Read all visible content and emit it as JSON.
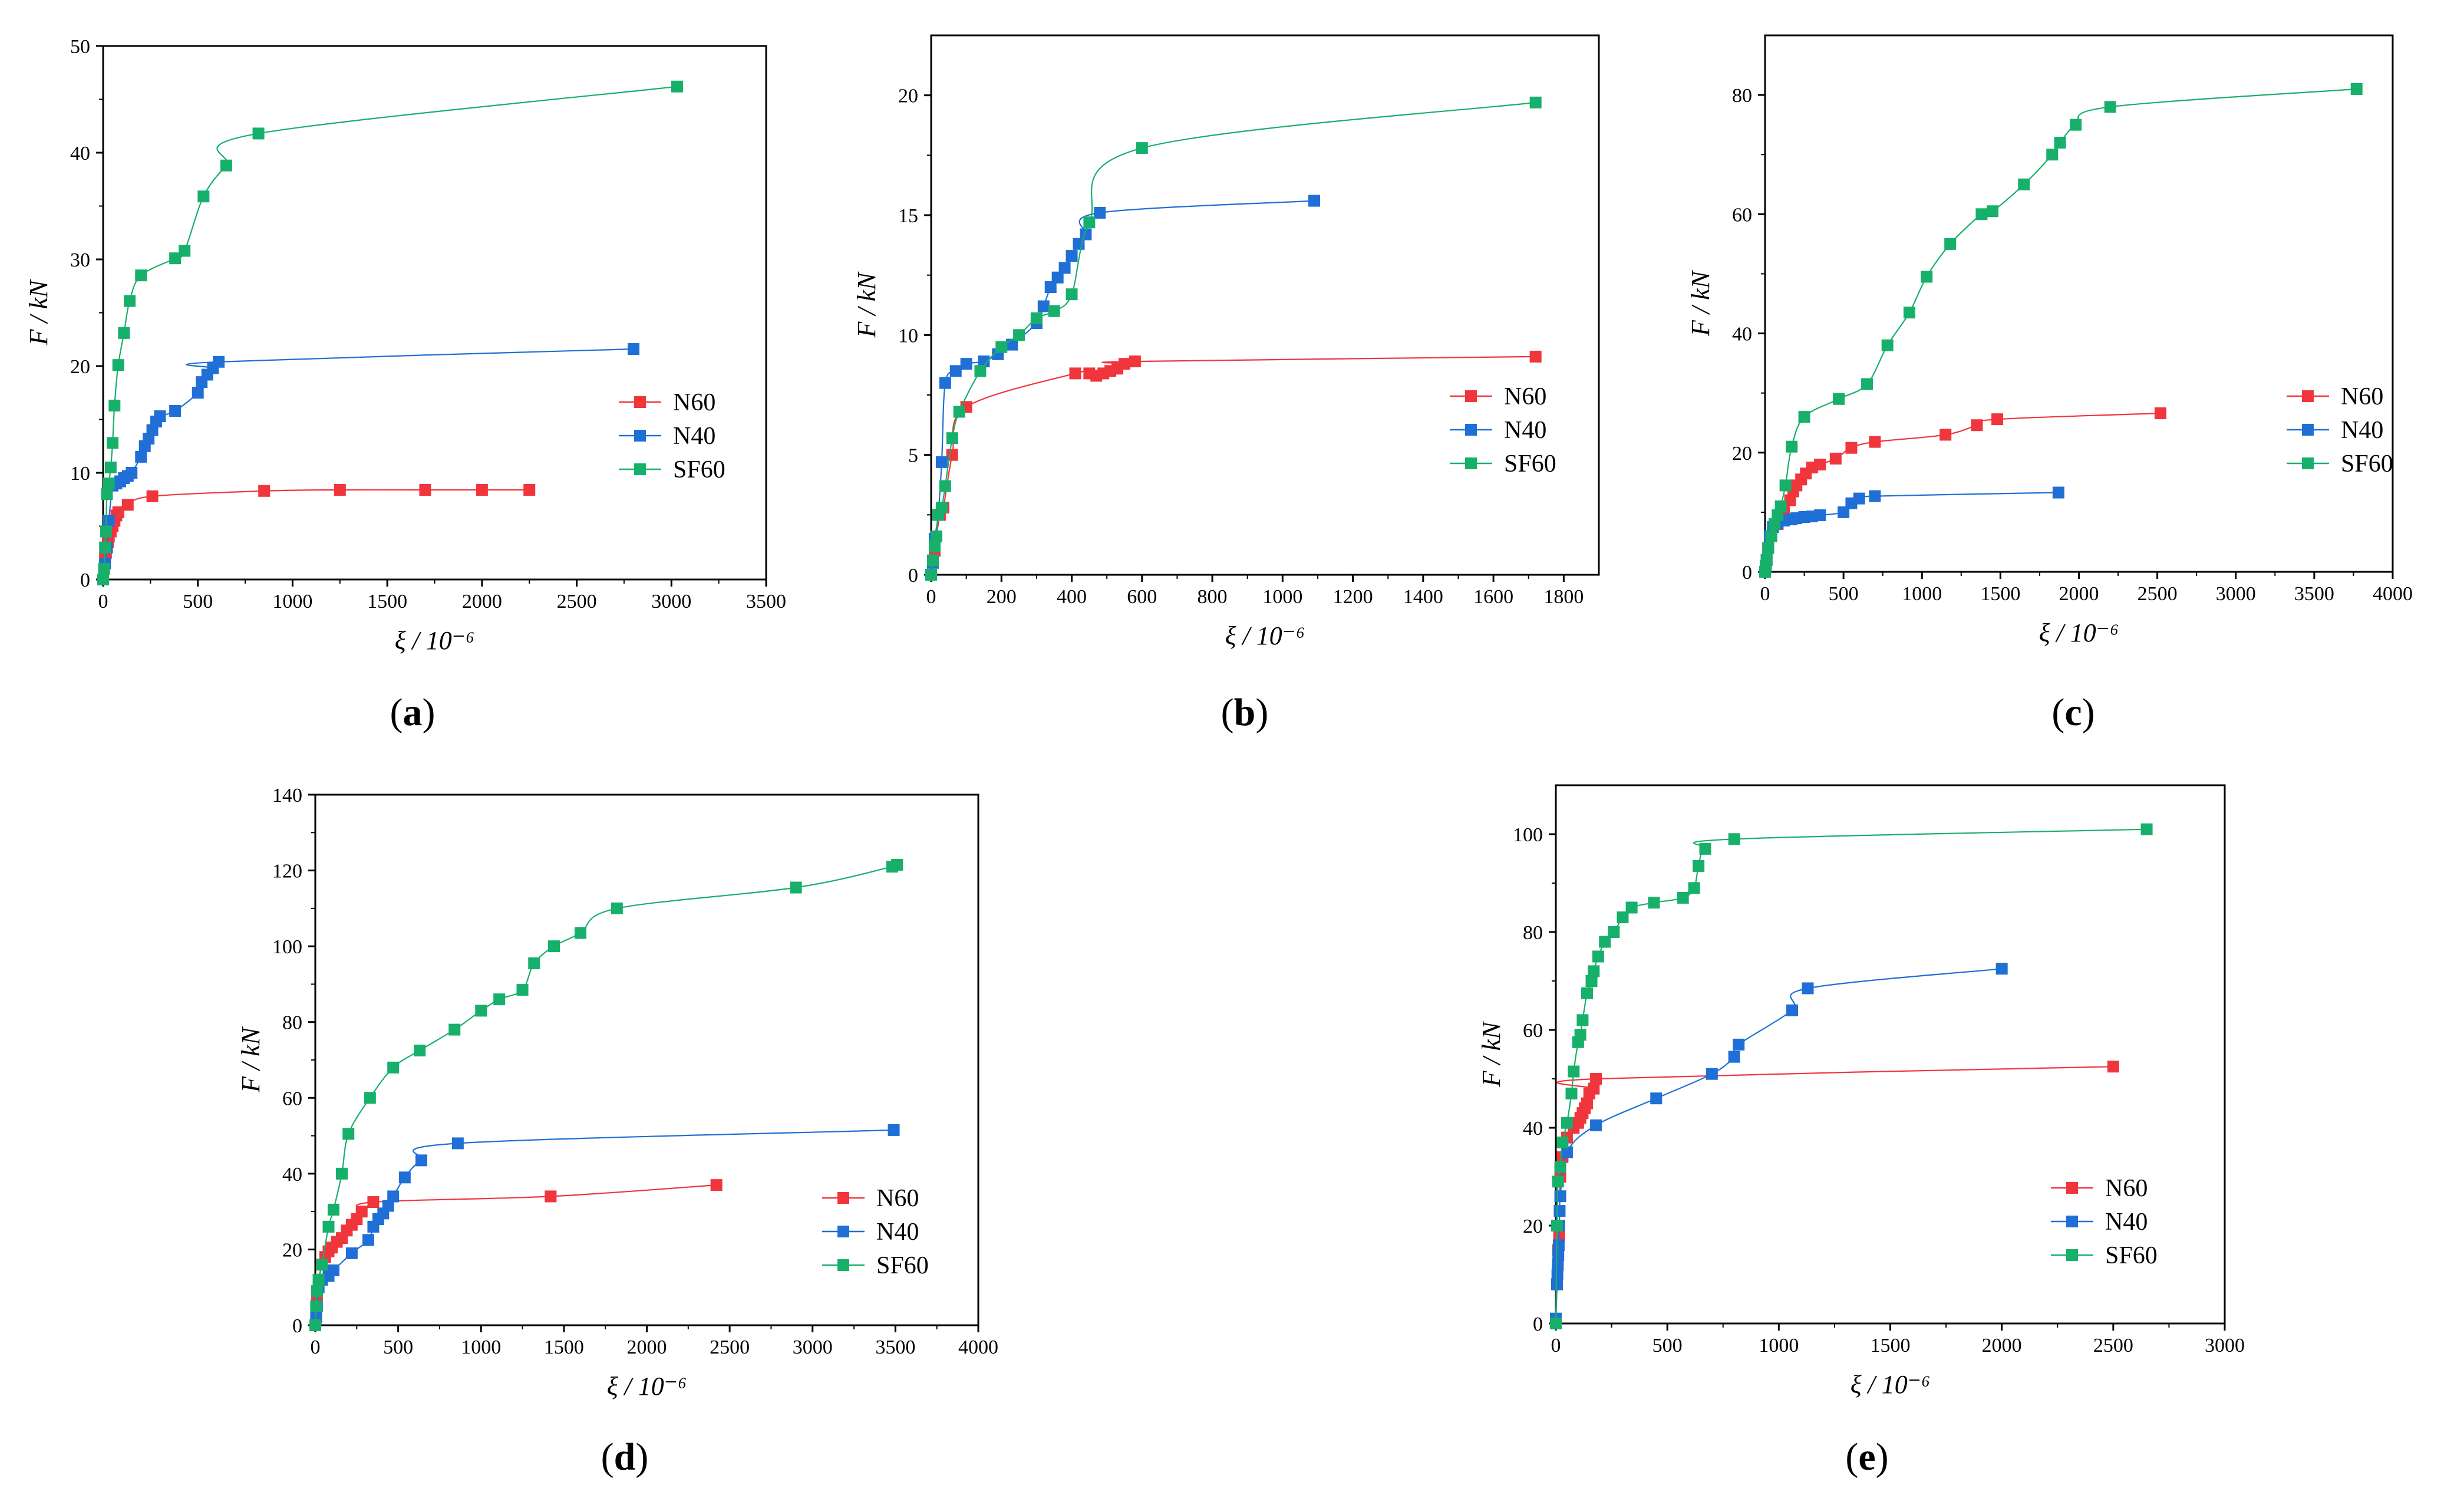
{
  "figure": {
    "series_colors": {
      "N60": "#f0353d",
      "N40": "#1f6fd6",
      "SF60": "#17b06b"
    }
  },
  "chart_data": [
    {
      "type": "line",
      "panel": "(a)",
      "panel_letter": "a",
      "xlabel": "ξ / 10⁻⁶",
      "ylabel": "F / kN",
      "xlim": [
        0,
        3500
      ],
      "ylim": [
        0,
        50
      ],
      "xticks": [
        0,
        500,
        1000,
        1500,
        2000,
        2500,
        3000,
        3500
      ],
      "yticks": [
        0,
        10,
        20,
        30,
        40,
        50
      ],
      "legend": "right",
      "series": [
        {
          "name": "N60",
          "color": "#f0353d",
          "x": [
            0,
            5,
            10,
            15,
            20,
            25,
            30,
            40,
            50,
            60,
            70,
            80,
            130,
            260,
            850,
            1250,
            1700,
            2000,
            2250
          ],
          "y": [
            0,
            1,
            2,
            2.5,
            3,
            3.5,
            4,
            4.5,
            5,
            5.5,
            6,
            6.3,
            7,
            7.8,
            8.3,
            8.4,
            8.4,
            8.4,
            8.4
          ]
        },
        {
          "name": "N40",
          "color": "#1f6fd6",
          "x": [
            0,
            10,
            20,
            30,
            50,
            70,
            90,
            110,
            130,
            150,
            200,
            220,
            240,
            260,
            280,
            300,
            380,
            500,
            520,
            550,
            580,
            610,
            2800
          ],
          "y": [
            0,
            1.5,
            3,
            5.5,
            8.8,
            9,
            9.2,
            9.5,
            9.7,
            10,
            11.5,
            12.5,
            13.2,
            14,
            14.8,
            15.3,
            15.8,
            17.5,
            18.5,
            19.2,
            19.8,
            20.4,
            21.6
          ]
        },
        {
          "name": "SF60",
          "color": "#17b06b",
          "x": [
            0,
            5,
            10,
            15,
            20,
            30,
            40,
            50,
            60,
            80,
            110,
            140,
            200,
            380,
            430,
            530,
            650,
            820,
            3030
          ],
          "y": [
            0,
            1,
            3,
            4.5,
            8,
            9,
            10.5,
            12.8,
            16.3,
            20.1,
            23.1,
            26.1,
            28.5,
            30.1,
            30.8,
            35.9,
            38.8,
            41.8,
            46.2
          ]
        }
      ]
    },
    {
      "type": "line",
      "panel": "(b)",
      "panel_letter": "b",
      "xlabel": "ξ / 10⁻⁶",
      "ylabel": "F / kN",
      "xlim": [
        0,
        1900
      ],
      "ylim": [
        0,
        22.5
      ],
      "xticks": [
        0,
        200,
        400,
        600,
        800,
        1000,
        1200,
        1400,
        1600,
        1800
      ],
      "yticks": [
        0,
        5,
        10,
        15,
        20
      ],
      "legend": "right",
      "series": [
        {
          "name": "N60",
          "color": "#f0353d",
          "x": [
            0,
            5,
            10,
            15,
            25,
            35,
            60,
            100,
            410,
            450,
            470,
            490,
            510,
            530,
            550,
            580,
            1720
          ],
          "y": [
            0,
            0.5,
            1,
            1.6,
            2.5,
            2.8,
            5,
            7,
            8.4,
            8.4,
            8.3,
            8.4,
            8.5,
            8.6,
            8.8,
            8.9,
            9.1
          ]
        },
        {
          "name": "N40",
          "color": "#1f6fd6",
          "x": [
            0,
            5,
            10,
            20,
            30,
            40,
            70,
            100,
            150,
            190,
            230,
            300,
            320,
            340,
            360,
            380,
            400,
            420,
            440,
            480,
            1090
          ],
          "y": [
            0,
            0.5,
            1.5,
            2.5,
            4.7,
            8,
            8.5,
            8.8,
            8.9,
            9.2,
            9.6,
            10.5,
            11.2,
            12,
            12.4,
            12.8,
            13.3,
            13.8,
            14.2,
            15.1,
            15.6
          ]
        },
        {
          "name": "SF60",
          "color": "#17b06b",
          "x": [
            0,
            5,
            10,
            15,
            20,
            30,
            40,
            60,
            80,
            140,
            200,
            250,
            300,
            350,
            400,
            450,
            600,
            1720
          ],
          "y": [
            0,
            0.6,
            1.2,
            1.6,
            2.5,
            2.8,
            3.7,
            5.7,
            6.8,
            8.5,
            9.5,
            10,
            10.7,
            11,
            11.7,
            14.7,
            17.8,
            19.7
          ]
        }
      ]
    },
    {
      "type": "line",
      "panel": "(c)",
      "panel_letter": "c",
      "xlabel": "ξ / 10⁻⁶",
      "ylabel": "F / kN",
      "xlim": [
        0,
        4000
      ],
      "ylim": [
        0,
        90
      ],
      "xticks": [
        0,
        500,
        1000,
        1500,
        2000,
        2500,
        3000,
        3500,
        4000
      ],
      "yticks": [
        0,
        20,
        40,
        60,
        80
      ],
      "legend": "right",
      "series": [
        {
          "name": "N60",
          "color": "#f0353d",
          "x": [
            0,
            10,
            20,
            40,
            80,
            120,
            160,
            180,
            200,
            230,
            260,
            300,
            350,
            450,
            550,
            700,
            1150,
            1350,
            1480,
            2520
          ],
          "y": [
            0,
            2,
            4,
            6,
            8,
            10,
            12,
            13.5,
            14.5,
            15.5,
            16.5,
            17.5,
            18,
            19,
            20.8,
            21.8,
            23,
            24.6,
            25.6,
            26.6
          ]
        },
        {
          "name": "N40",
          "color": "#1f6fd6",
          "x": [
            0,
            5,
            10,
            20,
            30,
            50,
            80,
            120,
            170,
            200,
            250,
            300,
            350,
            500,
            550,
            600,
            700,
            1870
          ],
          "y": [
            0,
            1,
            2,
            4,
            6,
            7.5,
            8.2,
            8.6,
            8.8,
            9,
            9.2,
            9.3,
            9.5,
            10,
            11.5,
            12.3,
            12.7,
            13.3
          ]
        },
        {
          "name": "SF60",
          "color": "#17b06b",
          "x": [
            0,
            5,
            10,
            20,
            40,
            60,
            80,
            100,
            130,
            170,
            250,
            470,
            650,
            780,
            920,
            1030,
            1180,
            1380,
            1450,
            1650,
            1830,
            1880,
            1980,
            2200,
            3770
          ],
          "y": [
            0,
            1,
            2,
            4,
            6,
            8,
            9.5,
            11,
            14.5,
            21,
            26,
            29,
            31.5,
            38,
            43.5,
            49.5,
            55,
            60,
            60.5,
            65,
            70,
            72,
            75,
            78,
            81
          ]
        }
      ]
    },
    {
      "type": "line",
      "panel": "(d)",
      "panel_letter": "d",
      "xlabel": "ξ / 10⁻⁶",
      "ylabel": "F / kN",
      "xlim": [
        0,
        4000
      ],
      "ylim": [
        0,
        140
      ],
      "xticks": [
        0,
        500,
        1000,
        1500,
        2000,
        2500,
        3000,
        3500,
        4000
      ],
      "yticks": [
        0,
        20,
        40,
        60,
        80,
        100,
        120,
        140
      ],
      "legend": "right",
      "series": [
        {
          "name": "N60",
          "color": "#f0353d",
          "x": [
            0,
            10,
            20,
            40,
            60,
            80,
            100,
            130,
            160,
            190,
            220,
            250,
            280,
            350,
            1420,
            2420
          ],
          "y": [
            0,
            8,
            12,
            16,
            18,
            19.5,
            20.5,
            22,
            23,
            25,
            26.5,
            28,
            30,
            32.5,
            34,
            37
          ]
        },
        {
          "name": "N40",
          "color": "#1f6fd6",
          "x": [
            0,
            5,
            10,
            20,
            40,
            80,
            110,
            220,
            320,
            350,
            380,
            410,
            440,
            470,
            540,
            640,
            860,
            3490
          ],
          "y": [
            0,
            2,
            5,
            10,
            12,
            13,
            14.5,
            19,
            22.5,
            26,
            28,
            29.5,
            31.5,
            34,
            39,
            43.5,
            48,
            51.5
          ]
        },
        {
          "name": "SF60",
          "color": "#17b06b",
          "x": [
            0,
            5,
            10,
            20,
            40,
            80,
            110,
            160,
            200,
            330,
            470,
            630,
            840,
            1000,
            1110,
            1250,
            1320,
            1440,
            1600,
            1820,
            2900,
            3480,
            3510
          ],
          "y": [
            0,
            5,
            9,
            12,
            16,
            26,
            30.5,
            40,
            50.5,
            60,
            68,
            72.5,
            78,
            83,
            86,
            88.5,
            95.5,
            100,
            103.5,
            110,
            115.5,
            121,
            121.5
          ]
        }
      ]
    },
    {
      "type": "line",
      "panel": "(e)",
      "panel_letter": "e",
      "xlabel": "ξ / 10⁻⁶",
      "ylabel": "F / kN",
      "xlim": [
        0,
        3000
      ],
      "ylim": [
        0,
        110
      ],
      "xticks": [
        0,
        500,
        1000,
        1500,
        2000,
        2500,
        3000
      ],
      "yticks": [
        0,
        20,
        40,
        60,
        80,
        100
      ],
      "legend": "bottom-right",
      "series": [
        {
          "name": "N60",
          "color": "#f0353d",
          "x": [
            0,
            5,
            10,
            15,
            20,
            30,
            50,
            80,
            100,
            110,
            120,
            130,
            140,
            150,
            170,
            180,
            2500
          ],
          "y": [
            0,
            8,
            15,
            18,
            30,
            34,
            38,
            40,
            41,
            42,
            43,
            44,
            45,
            47,
            48,
            50,
            52.5
          ]
        },
        {
          "name": "N40",
          "color": "#1f6fd6",
          "x": [
            0,
            5,
            7,
            9,
            11,
            13,
            15,
            17,
            20,
            50,
            180,
            450,
            700,
            800,
            820,
            1060,
            1130,
            2000
          ],
          "y": [
            1,
            8,
            10,
            12,
            14,
            16,
            20,
            23,
            26,
            35,
            40.5,
            46,
            51,
            54.5,
            57,
            64,
            68.5,
            72.5
          ]
        },
        {
          "name": "SF60",
          "color": "#17b06b",
          "x": [
            0,
            5,
            10,
            20,
            30,
            50,
            70,
            80,
            100,
            110,
            120,
            140,
            160,
            170,
            190,
            220,
            260,
            300,
            340,
            440,
            570,
            620,
            640,
            670,
            800,
            2650
          ],
          "y": [
            0,
            20,
            29,
            32,
            37,
            41,
            47,
            51.5,
            57.5,
            59,
            62,
            67.5,
            70,
            72,
            75,
            78,
            80,
            83,
            85,
            86,
            87,
            89,
            93.5,
            97,
            99,
            101
          ]
        }
      ]
    }
  ]
}
